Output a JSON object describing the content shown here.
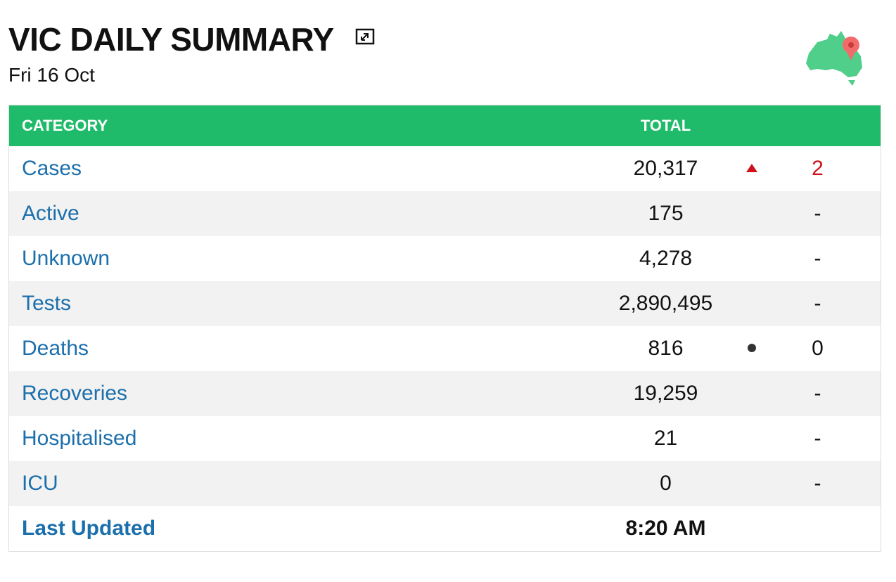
{
  "header": {
    "title": "VIC DAILY SUMMARY",
    "date": "Fri 16 Oct"
  },
  "table": {
    "columns": [
      "CATEGORY",
      "TOTAL"
    ],
    "rows": [
      [
        "Cases",
        "20,317",
        "2"
      ],
      [
        "Active",
        "175",
        "-"
      ],
      [
        "Unknown",
        "4,278",
        "-"
      ],
      [
        "Tests",
        "2,890,495",
        "-"
      ],
      [
        "Deaths",
        "816",
        "0"
      ],
      [
        "Recoveries",
        "19,259",
        "-"
      ],
      [
        "Hospitalised",
        "21",
        "-"
      ],
      [
        "ICU",
        "0",
        "-"
      ]
    ],
    "footer": [
      "Last Updated",
      "8:20 AM"
    ]
  }
}
